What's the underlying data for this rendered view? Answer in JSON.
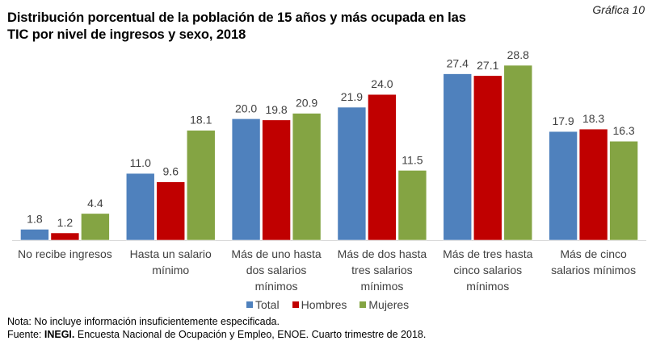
{
  "figure_label": "Gráfica 10",
  "chart_data": {
    "type": "bar",
    "title": "Distribución porcentual de la población de 15 años y más ocupada en las TIC por nivel de ingresos y sexo, 2018",
    "title_lines": [
      "Distribución porcentual de la población de 15 años y más ocupada en las",
      "TIC por nivel de ingresos y sexo, 2018"
    ],
    "xlabel": "",
    "ylabel": "",
    "ylim": [
      0,
      30
    ],
    "grid": false,
    "legend_position": "bottom",
    "categories": [
      [
        "No recibe ingresos"
      ],
      [
        "Hasta un salario",
        "mínimo"
      ],
      [
        "Más de uno hasta",
        "dos salarios",
        "mínimos"
      ],
      [
        "Más de dos hasta",
        "tres salarios",
        "mínimos"
      ],
      [
        "Más de tres hasta",
        "cinco salarios",
        "mínimos"
      ],
      [
        "Más de cinco",
        "salarios mínimos"
      ]
    ],
    "series": [
      {
        "name": "Total",
        "color": "#4F81BD",
        "values": [
          1.8,
          11.0,
          20.0,
          21.9,
          27.4,
          17.9
        ]
      },
      {
        "name": "Hombres",
        "color": "#C00000",
        "values": [
          1.2,
          9.6,
          19.8,
          24.0,
          27.1,
          18.3
        ]
      },
      {
        "name": "Mujeres",
        "color": "#84A443",
        "values": [
          4.4,
          18.1,
          20.9,
          11.5,
          28.8,
          16.3
        ]
      }
    ]
  },
  "notes": {
    "nota": "Nota: No incluye información insuficientemente especificada.",
    "fuente_label": "Fuente: ",
    "fuente_org": "INEGI.",
    "fuente_text": " Encuesta Nacional de Ocupación y Empleo, ENOE. Cuarto trimestre de 2018."
  }
}
